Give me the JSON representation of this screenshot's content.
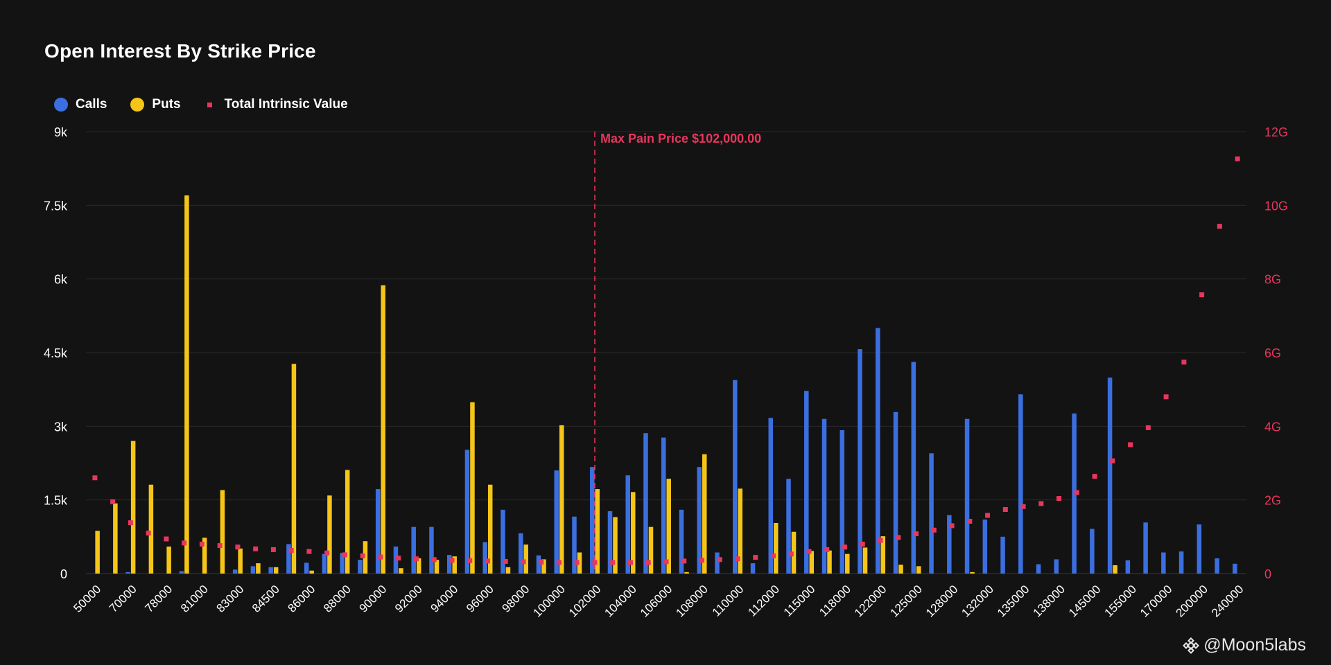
{
  "colors": {
    "calls": "#3b6fe0",
    "puts": "#f5c518",
    "intrinsic": "#e8365d",
    "grid": "#2a2a2a",
    "text": "#ffffff",
    "background": "#131313"
  },
  "legend": {
    "calls": "Calls",
    "puts": "Puts",
    "intrinsic": "Total Intrinsic Value"
  },
  "watermark": {
    "symbol": "@",
    "text": "Moon5labs"
  },
  "chart_data": {
    "type": "bar",
    "title": "Open Interest By Strike Price",
    "categories": [
      "50000",
      "60000",
      "70000",
      "75000",
      "78000",
      "80000",
      "81000",
      "82000",
      "83000",
      "84000",
      "84500",
      "85000",
      "86000",
      "87000",
      "88000",
      "89000",
      "90000",
      "91000",
      "92000",
      "93000",
      "94000",
      "95000",
      "96000",
      "97000",
      "98000",
      "99000",
      "100000",
      "101000",
      "102000",
      "103000",
      "104000",
      "105000",
      "106000",
      "107000",
      "108000",
      "109000",
      "110000",
      "111000",
      "112000",
      "114000",
      "115000",
      "116000",
      "118000",
      "120000",
      "122000",
      "124000",
      "125000",
      "126000",
      "128000",
      "130000",
      "132000",
      "134000",
      "135000",
      "136000",
      "138000",
      "140000",
      "145000",
      "150000",
      "155000",
      "160000",
      "170000",
      "180000",
      "200000",
      "220000",
      "240000"
    ],
    "x_tick_labels": [
      "50000",
      "70000",
      "78000",
      "81000",
      "83000",
      "84500",
      "86000",
      "88000",
      "90000",
      "92000",
      "94000",
      "96000",
      "98000",
      "100000",
      "102000",
      "104000",
      "106000",
      "108000",
      "110000",
      "112000",
      "115000",
      "118000",
      "122000",
      "125000",
      "128000",
      "132000",
      "135000",
      "138000",
      "145000",
      "155000",
      "170000",
      "200000",
      "240000"
    ],
    "series": [
      {
        "name": "Calls",
        "axis": "left",
        "values": [
          0,
          0,
          30,
          0,
          0,
          50,
          0,
          0,
          80,
          150,
          130,
          600,
          220,
          400,
          420,
          280,
          1720,
          550,
          950,
          950,
          380,
          2520,
          640,
          1300,
          820,
          370,
          2100,
          1160,
          2170,
          1270,
          2000,
          2860,
          2770,
          1300,
          2170,
          430,
          3940,
          210,
          3170,
          1930,
          3720,
          3150,
          2920,
          4570,
          5000,
          3290,
          4310,
          2450,
          1190,
          3150,
          1100,
          750,
          3650,
          190,
          290,
          3260,
          910,
          3990,
          270,
          1040,
          430,
          450,
          1000,
          310,
          200
        ]
      },
      {
        "name": "Puts",
        "axis": "left",
        "values": [
          870,
          1430,
          2700,
          1810,
          550,
          7700,
          730,
          1700,
          510,
          210,
          130,
          4270,
          60,
          1590,
          2110,
          660,
          5870,
          110,
          310,
          280,
          350,
          3490,
          1810,
          130,
          590,
          290,
          3020,
          430,
          1720,
          1150,
          1660,
          950,
          1930,
          30,
          2430,
          0,
          1730,
          0,
          1030,
          850,
          460,
          470,
          400,
          530,
          760,
          180,
          150,
          0,
          0,
          30,
          0,
          0,
          0,
          0,
          0,
          0,
          0,
          170,
          0,
          0,
          0,
          0,
          0,
          0,
          0
        ]
      },
      {
        "name": "Total Intrinsic Value",
        "axis": "right",
        "type": "scatter",
        "values": [
          2.6,
          1.95,
          1.38,
          1.1,
          0.94,
          0.83,
          0.8,
          0.76,
          0.72,
          0.67,
          0.65,
          0.63,
          0.6,
          0.56,
          0.51,
          0.48,
          0.45,
          0.42,
          0.4,
          0.38,
          0.36,
          0.35,
          0.34,
          0.33,
          0.32,
          0.31,
          0.3,
          0.3,
          0.3,
          0.3,
          0.3,
          0.3,
          0.32,
          0.34,
          0.36,
          0.38,
          0.4,
          0.44,
          0.48,
          0.53,
          0.6,
          0.65,
          0.72,
          0.8,
          0.9,
          0.98,
          1.08,
          1.18,
          1.3,
          1.42,
          1.58,
          1.74,
          1.82,
          1.9,
          2.04,
          2.2,
          2.64,
          3.06,
          3.5,
          3.96,
          4.8,
          5.74,
          7.57,
          9.43,
          11.26
        ]
      }
    ],
    "y_left": {
      "ticks": [
        0,
        1500,
        3000,
        4500,
        6000,
        7500,
        9000
      ],
      "tick_labels": [
        "0",
        "1.5k",
        "3k",
        "4.5k",
        "6k",
        "7.5k",
        "9k"
      ],
      "ylim": [
        0,
        9000
      ]
    },
    "y_right": {
      "ticks": [
        0,
        2,
        4,
        6,
        8,
        10,
        12
      ],
      "tick_labels": [
        "0",
        "2G",
        "4G",
        "6G",
        "8G",
        "10G",
        "12G"
      ],
      "ylim": [
        0,
        12
      ],
      "unit": "G"
    },
    "annotation": {
      "label": "Max Pain Price $102,000.00",
      "category": "102000"
    },
    "legend_position": "top-left",
    "grid": true
  }
}
